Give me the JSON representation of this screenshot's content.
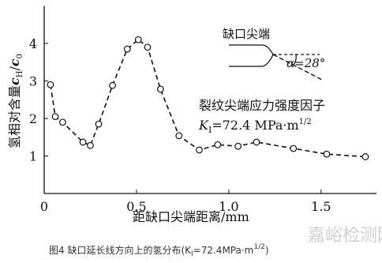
{
  "chart_data": {
    "type": "line",
    "x": [
      0.034,
      0.06,
      0.1,
      0.21,
      0.25,
      0.295,
      0.37,
      0.45,
      0.51,
      0.56,
      0.63,
      0.73,
      0.84,
      0.94,
      1.05,
      1.15,
      1.35,
      1.53,
      1.74
    ],
    "values": [
      2.9,
      2.05,
      1.9,
      1.37,
      1.28,
      1.85,
      2.88,
      3.85,
      4.1,
      3.9,
      2.78,
      1.54,
      1.16,
      1.3,
      1.26,
      1.37,
      1.2,
      1.05,
      0.98
    ],
    "color": "#111111",
    "xlim": [
      0,
      1.8
    ],
    "xticks": [
      0,
      0.5,
      {
        "value": 1.0,
        "label": "1.0"
      },
      1.5
    ],
    "ylim": [
      0,
      5
    ],
    "yticks": [
      1,
      2,
      3,
      4
    ],
    "xlabel": "距缺口尖端距离/mm",
    "ylabel_parts": [
      "氢相对含量",
      "c",
      "H",
      "/",
      "c",
      "0"
    ],
    "notch_label": "缺口尖端",
    "angle_label": "α=28°",
    "annotation": "裂纹尖端应力强度因子",
    "k_parts": [
      "K",
      "I",
      "=72.4 MPa·m",
      "1/2"
    ],
    "caption_parts": [
      "图4 缺口延长线方向上的氢分布(K",
      "Ⅰ",
      "=72.4MPa·m",
      "1/2",
      ")"
    ],
    "watermark": "嘉峪检测网"
  }
}
